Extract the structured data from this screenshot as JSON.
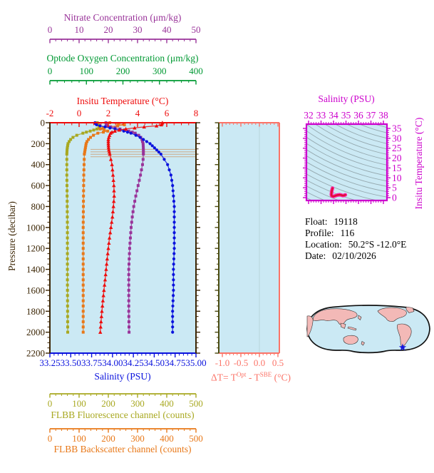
{
  "colors": {
    "nitrate": "#993399",
    "oxygen": "#009933",
    "temperature": "#ee0c0c",
    "pressure_axis": "#3b2504",
    "salinity": "#0a12dd",
    "delta_t": "#fb7468",
    "delta_t_left_axis": "#4a4a10",
    "fluorescence": "#a8a820",
    "backscatter": "#e87818",
    "ts_frame": "#cc00cc",
    "plot_bg": "#cbe9f4",
    "annotation_tan": "#ccb296",
    "contour_gray": "#95a9af",
    "land_pink": "#f3b9b7",
    "map_outline": "#111111",
    "star_blue": "#1515dd",
    "info_text": "#000000"
  },
  "axes": {
    "nitrate": {
      "title": "Nitrate Concentration (μm/kg)",
      "tick_labels": [
        "0",
        "10",
        "20",
        "30",
        "40",
        "50"
      ],
      "minor_step": 2
    },
    "oxygen": {
      "title": "Optode Oxygen Concentration (μm/kg)",
      "tick_labels": [
        "0",
        "100",
        "200",
        "300",
        "400"
      ],
      "minor_step": 20
    },
    "temperature": {
      "title": "Insitu Temperature (°C)",
      "tick_labels": [
        "-2",
        "0",
        "2",
        "4",
        "6",
        "8"
      ],
      "minor_step": 0.5
    },
    "pressure": {
      "title": "Pressure (decibar)",
      "tick_labels": [
        "0",
        "200",
        "400",
        "600",
        "800",
        "1000",
        "1200",
        "1400",
        "1600",
        "1800",
        "2000",
        "2200"
      ],
      "minor_step": 50
    },
    "salinity": {
      "title": "Salinity (PSU)",
      "tick_labels": [
        "33.25",
        "33.50",
        "33.75",
        "34.00",
        "34.25",
        "34.50",
        "34.75",
        "35.00"
      ],
      "minor_step": 0.05
    },
    "delta_t": {
      "title_pre": "ΔT= T",
      "title_sup1": "Opt",
      "title_mid": " - T",
      "title_sup2": "SBE",
      "title_post": " (°C)",
      "tick_labels": [
        "-1.0",
        "-0.5",
        "0.0",
        "0.5"
      ],
      "minor_step": 0.1
    },
    "fluorescence": {
      "title": "FLBB Fluorescence channel (counts)",
      "tick_labels": [
        "0",
        "100",
        "200",
        "300",
        "400",
        "500"
      ],
      "minor_step": 20
    },
    "backscatter": {
      "title": "FLBB Backscatter channel (counts)",
      "tick_labels": [
        "0",
        "100",
        "200",
        "300",
        "400",
        "500"
      ],
      "minor_step": 20
    },
    "ts_salinity": {
      "title": "Salinity (PSU)",
      "tick_labels": [
        "32",
        "33",
        "34",
        "35",
        "36",
        "37",
        "38"
      ],
      "minor_step": 0.2
    },
    "ts_temperature": {
      "title": "Insitu Temperature (°C)",
      "tick_labels": [
        "0",
        "5",
        "10",
        "15",
        "20",
        "25",
        "30",
        "35"
      ],
      "minor_step": 1
    }
  },
  "info": {
    "lines": [
      {
        "label": "Float:",
        "value": "19118"
      },
      {
        "label": "Profile:",
        "value": "116"
      },
      {
        "label": "Location:",
        "value": "50.2°S -12.0°E"
      },
      {
        "label": "Date:",
        "value": "02/10/2026"
      }
    ]
  },
  "chart_data": {
    "profile_plot": {
      "type": "line",
      "title": "",
      "pressure_axis": {
        "label": "Pressure (decibar)",
        "range": [
          0,
          2200
        ],
        "inverted": true
      },
      "annotation_lines_pressure": [
        255,
        278,
        302,
        325
      ],
      "series": [
        {
          "name": "FLBB Fluorescence channel",
          "unit": "counts",
          "axis_range": [
            0,
            500
          ],
          "marker": "square",
          "color_key": "fluorescence",
          "points": [
            [
              0,
              162
            ],
            [
              20,
              166
            ],
            [
              40,
              170
            ],
            [
              50,
              168
            ],
            [
              60,
              161
            ],
            [
              70,
              150
            ],
            [
              80,
              138
            ],
            [
              90,
              125
            ],
            [
              100,
              113
            ],
            [
              120,
              92
            ],
            [
              140,
              79
            ],
            [
              160,
              71
            ],
            [
              180,
              66
            ],
            [
              200,
              62
            ],
            [
              250,
              59
            ],
            [
              300,
              58
            ],
            [
              400,
              58
            ],
            [
              500,
              58
            ],
            [
              700,
              59
            ],
            [
              1000,
              60
            ],
            [
              1500,
              60
            ],
            [
              2000,
              61
            ]
          ]
        },
        {
          "name": "FLBB Backscatter channel",
          "unit": "counts",
          "axis_range": [
            0,
            500
          ],
          "marker": "square",
          "color_key": "backscatter",
          "points": [
            [
              0,
              205
            ],
            [
              10,
              235
            ],
            [
              20,
              255
            ],
            [
              30,
              232
            ],
            [
              40,
              205
            ],
            [
              50,
              182
            ],
            [
              60,
              172
            ],
            [
              70,
              186
            ],
            [
              80,
              198
            ],
            [
              90,
              183
            ],
            [
              100,
              164
            ],
            [
              120,
              149
            ],
            [
              140,
              139
            ],
            [
              160,
              132
            ],
            [
              180,
              127
            ],
            [
              200,
              124
            ],
            [
              250,
              121
            ],
            [
              300,
              118
            ],
            [
              400,
              117
            ],
            [
              500,
              116
            ],
            [
              700,
              115
            ],
            [
              1000,
              114
            ],
            [
              1500,
              114
            ],
            [
              2000,
              114
            ]
          ]
        },
        {
          "name": "Optode Oxygen Concentration",
          "unit": "μm/kg",
          "axis_range": [
            0,
            400
          ],
          "marker": "none",
          "color_key": "oxygen",
          "points": []
        },
        {
          "name": "Nitrate Concentration",
          "unit": "μm/kg",
          "axis_range": [
            0,
            50
          ],
          "marker": "square",
          "color_key": "nitrate",
          "points": [
            [
              0,
              19.2
            ],
            [
              20,
              19.3
            ],
            [
              30,
              19.6
            ],
            [
              40,
              20.8
            ],
            [
              50,
              22.3
            ],
            [
              60,
              24
            ],
            [
              70,
              25.6
            ],
            [
              80,
              27
            ],
            [
              90,
              28.2
            ],
            [
              100,
              29.2
            ],
            [
              120,
              30.4
            ],
            [
              140,
              31.1
            ],
            [
              160,
              31.5
            ],
            [
              200,
              31.9
            ],
            [
              250,
              32
            ],
            [
              300,
              32
            ],
            [
              350,
              31.9
            ],
            [
              400,
              31.7
            ],
            [
              500,
              31
            ],
            [
              600,
              30.2
            ],
            [
              700,
              29.4
            ],
            [
              800,
              28.7
            ],
            [
              900,
              28.2
            ],
            [
              1000,
              27.8
            ],
            [
              1200,
              27.3
            ],
            [
              1400,
              27
            ],
            [
              1600,
              27
            ],
            [
              1800,
              27
            ],
            [
              2000,
              27.1
            ]
          ]
        },
        {
          "name": "Salinity",
          "unit": "PSU",
          "axis_range": [
            33.25,
            35.0
          ],
          "marker": "circle",
          "color_key": "salinity",
          "points": [
            [
              0,
              33.79
            ],
            [
              15,
              33.8
            ],
            [
              25,
              33.82
            ],
            [
              35,
              33.88
            ],
            [
              45,
              33.94
            ],
            [
              55,
              34
            ],
            [
              65,
              34.06
            ],
            [
              75,
              34.11
            ],
            [
              85,
              34.16
            ],
            [
              100,
              34.22
            ],
            [
              120,
              34.28
            ],
            [
              140,
              34.33
            ],
            [
              160,
              34.37
            ],
            [
              180,
              34.41
            ],
            [
              200,
              34.45
            ],
            [
              230,
              34.49
            ],
            [
              260,
              34.53
            ],
            [
              300,
              34.58
            ],
            [
              350,
              34.62
            ],
            [
              400,
              34.66
            ],
            [
              450,
              34.68
            ],
            [
              500,
              34.7
            ],
            [
              600,
              34.72
            ],
            [
              700,
              34.73
            ],
            [
              800,
              34.74
            ],
            [
              1000,
              34.74
            ],
            [
              1200,
              34.74
            ],
            [
              1400,
              34.73
            ],
            [
              1600,
              34.73
            ],
            [
              1800,
              34.72
            ],
            [
              2000,
              34.72
            ]
          ]
        },
        {
          "name": "Insitu Temperature",
          "unit": "°C",
          "axis_range": [
            -2,
            8
          ],
          "marker": "triangle",
          "color_key": "temperature",
          "points": [
            [
              0,
              5.7
            ],
            [
              15,
              5.65
            ],
            [
              25,
              5.6
            ],
            [
              30,
              5.3
            ],
            [
              35,
              4.9
            ],
            [
              40,
              4.45
            ],
            [
              45,
              4.1
            ],
            [
              50,
              3.8
            ],
            [
              55,
              3.5
            ],
            [
              60,
              3.2
            ],
            [
              70,
              2.75
            ],
            [
              80,
              2.45
            ],
            [
              90,
              2.25
            ],
            [
              100,
              2.15
            ],
            [
              130,
              2.05
            ],
            [
              160,
              2
            ],
            [
              200,
              2
            ],
            [
              250,
              2.02
            ],
            [
              300,
              2.1
            ],
            [
              400,
              2.25
            ],
            [
              500,
              2.32
            ],
            [
              600,
              2.38
            ],
            [
              700,
              2.4
            ],
            [
              800,
              2.35
            ],
            [
              900,
              2.28
            ],
            [
              1000,
              2.18
            ],
            [
              1100,
              2.08
            ],
            [
              1200,
              2
            ],
            [
              1300,
              1.92
            ],
            [
              1400,
              1.85
            ],
            [
              1500,
              1.78
            ],
            [
              1600,
              1.7
            ],
            [
              1700,
              1.63
            ],
            [
              1800,
              1.56
            ],
            [
              1900,
              1.5
            ],
            [
              2000,
              1.45
            ]
          ]
        }
      ]
    },
    "delta_t_plot": {
      "type": "line",
      "x_label": "ΔT= T^Opt - T^SBE (°C)",
      "x_range": [
        -1.1,
        0.55
      ],
      "series": []
    },
    "ts_diagram": {
      "type": "line",
      "x_label": "Salinity (PSU)",
      "x_range": [
        32,
        38
      ],
      "y_label": "Insitu Temperature (°C)",
      "y_range": [
        0,
        35
      ],
      "background_contours": "isopycnals",
      "points": [
        [
          33.92,
          4.8
        ],
        [
          33.87,
          3.6
        ],
        [
          33.84,
          2.4
        ],
        [
          33.83,
          1.4
        ],
        [
          33.87,
          0.8
        ],
        [
          34.0,
          0.6
        ],
        [
          34.15,
          0.95
        ],
        [
          34.32,
          1.3
        ],
        [
          34.5,
          1.45
        ],
        [
          34.62,
          1.3
        ],
        [
          34.72,
          1.05
        ],
        [
          34.82,
          1.1
        ],
        [
          34.95,
          1.4
        ]
      ]
    },
    "map": {
      "type": "map",
      "projection": "pacific-centered-globe",
      "marker": "blue-star-at-profile-location"
    }
  }
}
